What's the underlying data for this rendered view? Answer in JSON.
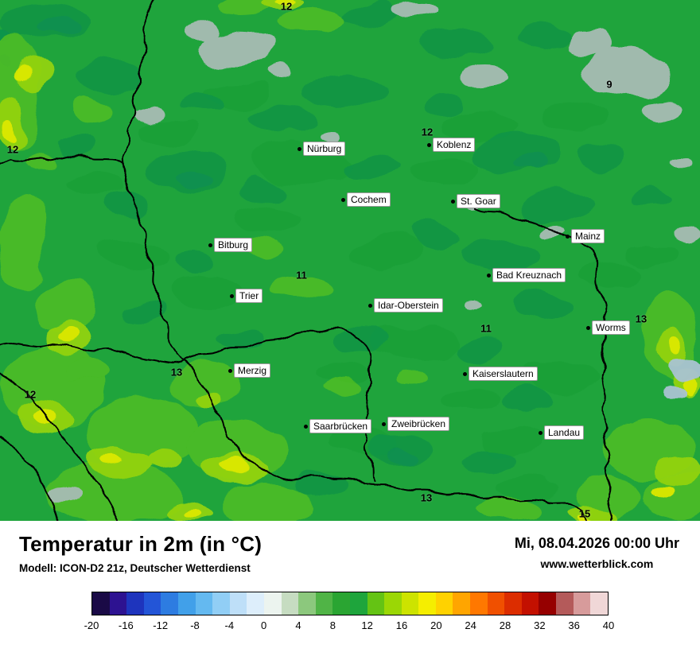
{
  "map": {
    "cities": [
      {
        "name": "Nürburg"
      },
      {
        "name": "Koblenz"
      },
      {
        "name": "Cochem"
      },
      {
        "name": "St. Goar"
      },
      {
        "name": "Bitburg"
      },
      {
        "name": "Mainz"
      },
      {
        "name": "Bad Kreuznach"
      },
      {
        "name": "Trier"
      },
      {
        "name": "Idar-Oberstein"
      },
      {
        "name": "Worms"
      },
      {
        "name": "Merzig"
      },
      {
        "name": "Kaiserslautern"
      },
      {
        "name": "Saarbrücken"
      },
      {
        "name": "Zweibrücken"
      },
      {
        "name": "Landau"
      }
    ],
    "temperatures": [
      {
        "value": "12"
      },
      {
        "value": "9"
      },
      {
        "value": "12"
      },
      {
        "value": "12"
      },
      {
        "value": "11"
      },
      {
        "value": "13"
      },
      {
        "value": "12"
      },
      {
        "value": "11"
      },
      {
        "value": "13"
      },
      {
        "value": "13"
      },
      {
        "value": "15"
      }
    ],
    "colors": {
      "base_green": "#1fa43c",
      "dark_green": "#0e9347",
      "teal_green": "#0a8c55",
      "light_green": "#4fbe24",
      "yellow_green": "#97d50d",
      "yellow": "#dce800",
      "gray_patch": "#a7bcb4",
      "blue_gray_patch": "#a9c3d2",
      "border_line": "#000000"
    }
  },
  "footer": {
    "title": "Temperatur in 2m (in °C)",
    "model_line": "Modell: ICON-D2 21z, Deutscher Wetterdienst",
    "datetime": "Mi, 08.04.2026 00:00 Uhr",
    "website": "www.wetterblick.com"
  },
  "legend": {
    "colors": [
      "#1a0a46",
      "#2d1291",
      "#1e34bd",
      "#2355d7",
      "#2d7ce1",
      "#41a0e9",
      "#64b9f0",
      "#91cef5",
      "#bedff8",
      "#ddeefb",
      "#ecf4ef",
      "#c6dcc1",
      "#8cc87d",
      "#50b446",
      "#2aa532",
      "#1ea53c",
      "#64c314",
      "#9bd705",
      "#cde300",
      "#f5ee00",
      "#ffd200",
      "#ffa500",
      "#ff7800",
      "#f05000",
      "#dc2d00",
      "#c31000",
      "#960000",
      "#b45a5a",
      "#d79b9b",
      "#f0d7d7"
    ],
    "ticks": [
      "-20",
      "-16",
      "-12",
      "-8",
      "-4",
      "0",
      "4",
      "8",
      "12",
      "16",
      "20",
      "24",
      "28",
      "32",
      "36",
      "40"
    ]
  }
}
